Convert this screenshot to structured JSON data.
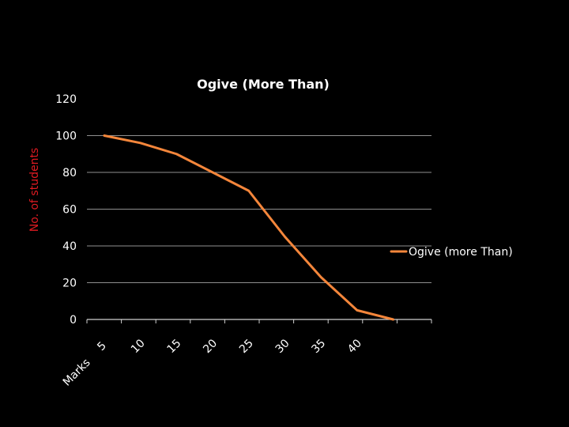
{
  "chart_data": {
    "type": "line",
    "title": "Ogive  (More Than)",
    "xlabel": "Marks",
    "ylabel": "No. of students",
    "ylim": [
      0,
      120
    ],
    "yticks": [
      "0",
      "20",
      "40",
      "60",
      "80",
      "100",
      "120"
    ],
    "categories": [
      "5",
      "10",
      "15",
      "20",
      "25",
      "30",
      "35",
      "40"
    ],
    "grid": true,
    "legend_position": "right",
    "series": [
      {
        "name": "Ogive  (more Than)",
        "color": "#f4863b",
        "points": [
          {
            "x": 5,
            "y": 100
          },
          {
            "x": 10,
            "y": 96
          },
          {
            "x": 15,
            "y": 90
          },
          {
            "x": 25,
            "y": 70
          },
          {
            "x": 30,
            "y": 45
          },
          {
            "x": 35,
            "y": 23
          },
          {
            "x": 40,
            "y": 5
          },
          {
            "x": 45,
            "y": 0
          }
        ]
      }
    ]
  }
}
